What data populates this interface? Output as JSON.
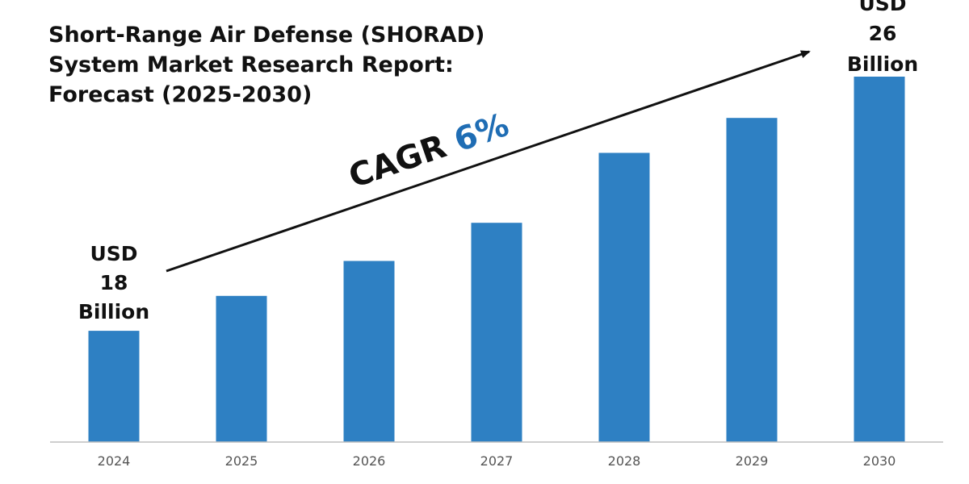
{
  "colors": {
    "bar": "#2E80C3",
    "axis": "#BFBFBF",
    "text": "#111111",
    "tick_text": "#555555",
    "cagr_accent": "#1F6DB4",
    "trend_line": "#111111"
  },
  "chart_data": {
    "type": "bar",
    "title": {
      "line1": "Short-Range Air Defense (SHORAD)",
      "line2": "System Market Research Report:",
      "line3": "Forecast (2025-2030)"
    },
    "categories": [
      "2024",
      "2025",
      "2026",
      "2027",
      "2028",
      "2029",
      "2030"
    ],
    "values": [
      18,
      19.1,
      20.2,
      21.4,
      23.6,
      24.7,
      26
    ],
    "unit": "USD Billion",
    "ylim": [
      14.5,
      26
    ],
    "grid": false,
    "xlabel": "",
    "ylabel": "",
    "annotations": {
      "start": {
        "line1": "USD",
        "line2": "18",
        "line3": "Billion"
      },
      "end": {
        "line1": "USD",
        "line2": "26",
        "line3": "Billion"
      },
      "cagr_label": "CAGR",
      "cagr_value": "6%"
    }
  }
}
